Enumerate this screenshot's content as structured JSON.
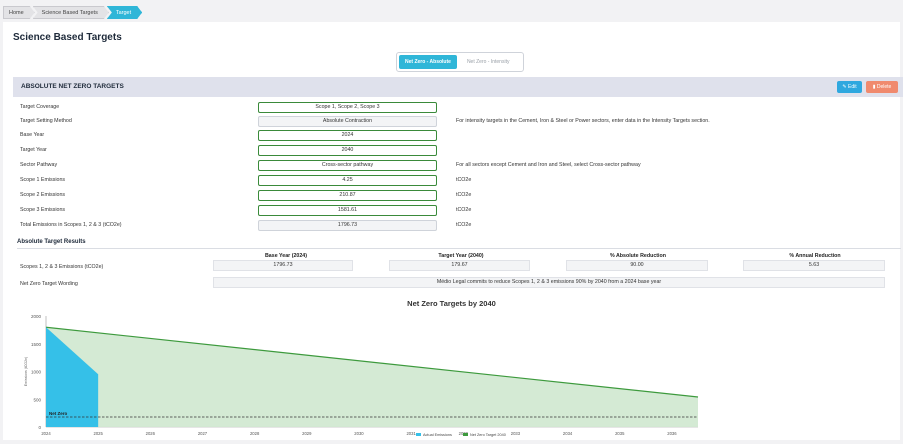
{
  "breadcrumb": [
    "Home",
    "Science Based Targets",
    "Target"
  ],
  "page": {
    "title": "Science Based Targets"
  },
  "toggle": {
    "absolute": "Net Zero - Absolute",
    "intensity": "Net Zero - Intensity"
  },
  "section": {
    "title": "ABSOLUTE NET ZERO TARGETS",
    "edit": "Edit",
    "delete": "Delete"
  },
  "form": {
    "target_coverage": {
      "label": "Target Coverage",
      "value": "Scope 1, Scope 2, Scope 3"
    },
    "target_setting_method": {
      "label": "Target Setting Method",
      "value": "Absolute Contraction",
      "note": "For intensity targets in the Cement, Iron & Steel or Power sectors, enter data in the Intensity Targets section."
    },
    "base_year": {
      "label": "Base Year",
      "value": "2024"
    },
    "target_year": {
      "label": "Target Year",
      "value": "2040"
    },
    "sector_pathway": {
      "label": "Sector Pathway",
      "value": "Cross-sector pathway",
      "note": "For all sectors except Cement and Iron and Steel, select Cross-sector pathway"
    },
    "scope1": {
      "label": "Scope 1 Emissions",
      "value": "4.25",
      "unit": "tCO2e"
    },
    "scope2": {
      "label": "Scope 2 Emissions",
      "value": "210.87",
      "unit": "tCO2e"
    },
    "scope3": {
      "label": "Scope 3 Emissions",
      "value": "1581.61",
      "unit": "tCO2e"
    },
    "total": {
      "label": "Total Emissions in Scopes 1, 2 & 3 (tCO2e)",
      "value": "1796.73",
      "unit": "tCO2e"
    }
  },
  "results": {
    "title": "Absolute Target Results",
    "headers": [
      "Base Year (2024)",
      "Target Year (2040)",
      "% Absolute Reduction",
      "% Annual Reduction"
    ],
    "row_label": "Scopes 1, 2 & 3 Emissions (tCO2e)",
    "values": [
      "1796.73",
      "179.67",
      "90.00",
      "5.63"
    ],
    "wording_label": "Net Zero Target Wording",
    "wording": "Médio Legal commits to reduce Scopes 1, 2 & 3 emissions 90% by 2040 from a 2024 base year"
  },
  "chart_data": {
    "type": "area",
    "title": "Net Zero Targets by 2040",
    "ylabel": "Emissions (tCO2e)",
    "xlabel": "",
    "x": [
      "2024",
      "2025",
      "2026",
      "2027",
      "2028",
      "2029",
      "2030",
      "2031",
      "2032",
      "2033",
      "2034",
      "2035",
      "2036"
    ],
    "ylim": [
      0,
      2000
    ],
    "yticks": [
      0,
      500,
      1000,
      1500,
      2000
    ],
    "series": [
      {
        "name": "Actual Emissions",
        "color": "#35c0e8",
        "points": [
          [
            2024,
            1796.73
          ],
          [
            2025,
            950
          ]
        ]
      },
      {
        "name": "Net Zero Target 2040",
        "color": "#3d9a3d",
        "fill": "#cfe8cf",
        "points": [
          [
            2024,
            1796.73
          ],
          [
            2036.5,
            540
          ]
        ]
      }
    ],
    "reference_line": {
      "label": "Net Zero",
      "value": 179.67,
      "color": "#333333"
    },
    "legend_position": "bottom",
    "grid": false
  }
}
